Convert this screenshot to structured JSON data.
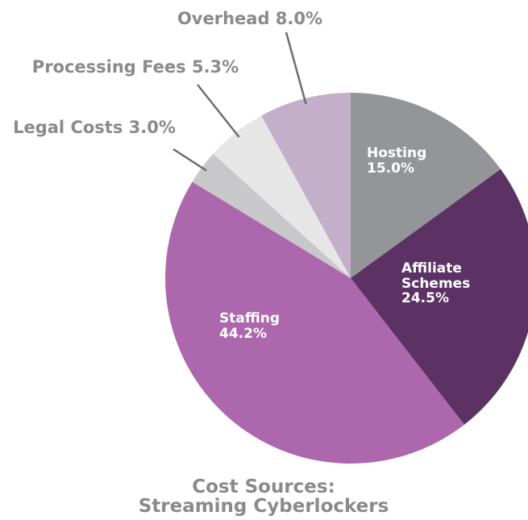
{
  "chart_data": {
    "type": "pie",
    "title": "Cost Sources: Streaming Cyberlockers",
    "categories": [
      "Hosting",
      "Affiliate Schemes",
      "Staffing",
      "Legal Costs",
      "Processing Fees",
      "Overhead"
    ],
    "values": [
      15.0,
      24.5,
      44.2,
      3.0,
      5.3,
      8.0
    ],
    "value_labels": [
      "15.0%",
      "24.5%",
      "44.2%",
      "3.0%",
      "5.3%",
      "8.0%"
    ],
    "colors": [
      "#939598",
      "#5c3265",
      "#ad68ad",
      "#c8c8ca",
      "#e6e6e7",
      "#c3afc9"
    ]
  }
}
